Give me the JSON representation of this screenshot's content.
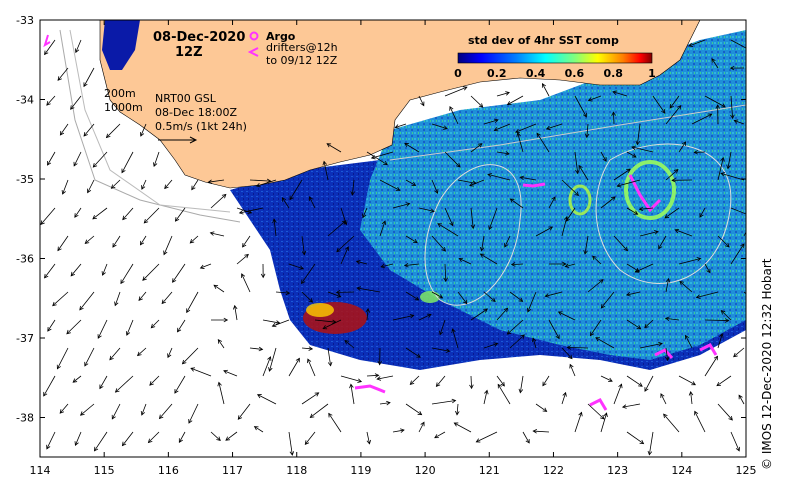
{
  "title": {
    "date": "08-Dec-2020",
    "hour": "12Z"
  },
  "legend": {
    "argo_label": "Argo",
    "drifters_label": "drifters@12h",
    "drifters_sub": "to 09/12 12Z",
    "argo_color": "#ff33ff",
    "drifter_color": "#ff33ff"
  },
  "colorbar": {
    "title": "std dev of 4hr SST comp",
    "ticks": [
      "0",
      "0.2",
      "0.4",
      "0.6",
      "0.8",
      "1"
    ],
    "colors": [
      "#00007f",
      "#0000ff",
      "#007fff",
      "#00ffff",
      "#7fff7f",
      "#ffff00",
      "#ff7f00",
      "#ff0000",
      "#7f0000"
    ]
  },
  "isobaths": {
    "label_200": "200m",
    "label_1000": "1000m"
  },
  "current_info": {
    "line1": "NRT00 GSL",
    "line2": "08-Dec 18:00Z",
    "line3": "0.5m/s (1kt 24h)"
  },
  "axes": {
    "x_ticks": [
      "114",
      "115",
      "116",
      "117",
      "118",
      "119",
      "120",
      "121",
      "122",
      "123",
      "124",
      "125"
    ],
    "y_ticks": [
      "-33",
      "-34",
      "-35",
      "-36",
      "-37",
      "-38"
    ]
  },
  "credit": "© IMOS 12-Dec-2020 12:32 Hobart",
  "colors": {
    "land": "#fdc896",
    "background": "#ffffff",
    "ocean_deep": "#0a1aa8"
  }
}
